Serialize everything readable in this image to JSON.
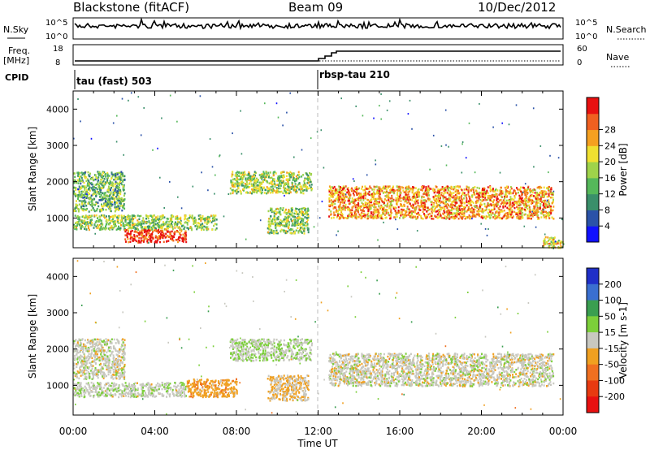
{
  "header": {
    "station": "Blackstone (fitACF)",
    "beam": "Beam 09",
    "date": "10/Dec/2012"
  },
  "top_panel": {
    "nsky_label": "N.Sky",
    "nsky_ticks": [
      "10^5",
      "10^0"
    ],
    "nsearch_label": "N.Search",
    "nsearch_ticks": [
      "10^5",
      "10^0"
    ]
  },
  "freq_panel": {
    "freq_label": "Freq.",
    "freq_unit": "[MHz]",
    "freq_ticks": [
      "18",
      "8"
    ],
    "nave_label": "Nave",
    "nave_ticks": [
      "60",
      "0"
    ]
  },
  "cpid": {
    "label": "CPID",
    "modes": [
      "tau (fast) 503",
      "rbsp-tau 210"
    ]
  },
  "x_axis": {
    "label": "Time UT",
    "ticks": [
      "00:00",
      "04:00",
      "08:00",
      "12:00",
      "16:00",
      "20:00",
      "00:00"
    ]
  },
  "colors": {
    "power": [
      "#1010ff",
      "#2a52a8",
      "#3a8f6a",
      "#55b85a",
      "#9fd34a",
      "#f0e030",
      "#f5a020",
      "#f06020",
      "#e81010"
    ],
    "velocity": [
      "#1f2fc8",
      "#3a6fd0",
      "#3a9e50",
      "#7ccf3a",
      "#c8c8c0",
      "#f0a020",
      "#f07020",
      "#e83a10",
      "#e81010"
    ]
  },
  "chart_data": [
    {
      "type": "heatmap",
      "title": "Power",
      "ylabel": "Slant Range [km]",
      "xlabel": "Time UT",
      "xlim": [
        "00:00",
        "24:00"
      ],
      "ylim": [
        180,
        4500
      ],
      "yticks": [
        "1000",
        "2000",
        "3000",
        "4000"
      ],
      "colorbar": {
        "label": "Power [dB]",
        "ticks": [
          "4",
          "8",
          "12",
          "16",
          "20",
          "24",
          "28"
        ],
        "range": [
          0,
          30
        ]
      },
      "echo_regions": [
        {
          "x": [
            "00:00",
            "02:30"
          ],
          "y": [
            1200,
            2300
          ],
          "value": 12
        },
        {
          "x": [
            "00:00",
            "07:00"
          ],
          "y": [
            700,
            1100
          ],
          "value": 14
        },
        {
          "x": [
            "02:30",
            "05:30"
          ],
          "y": [
            350,
            700
          ],
          "value": 27
        },
        {
          "x": [
            "07:40",
            "11:40"
          ],
          "y": [
            1700,
            2300
          ],
          "value": 15
        },
        {
          "x": [
            "09:30",
            "11:30"
          ],
          "y": [
            600,
            1300
          ],
          "value": 14
        },
        {
          "x": [
            "12:30",
            "23:30"
          ],
          "y": [
            1000,
            1900
          ],
          "value": 22
        },
        {
          "x": [
            "23:00",
            "24:00"
          ],
          "y": [
            200,
            500
          ],
          "value": 18
        }
      ]
    },
    {
      "type": "heatmap",
      "title": "Velocity",
      "ylabel": "Slant Range [km]",
      "xlabel": "Time UT",
      "xlim": [
        "00:00",
        "24:00"
      ],
      "ylim": [
        180,
        4500
      ],
      "yticks": [
        "1000",
        "2000",
        "3000",
        "4000"
      ],
      "colorbar": {
        "label": "Velocity [m s-1]",
        "ticks": [
          "200",
          "100",
          "50",
          "15",
          "-15",
          "-50",
          "-100",
          "-200"
        ],
        "range": [
          -250,
          250
        ]
      },
      "echo_regions": [
        {
          "x": [
            "00:00",
            "02:30"
          ],
          "y": [
            1200,
            2300
          ],
          "value": 0
        },
        {
          "x": [
            "00:00",
            "05:30"
          ],
          "y": [
            700,
            1100
          ],
          "value": 10
        },
        {
          "x": [
            "05:30",
            "08:00"
          ],
          "y": [
            700,
            1200
          ],
          "value": -60
        },
        {
          "x": [
            "07:40",
            "11:40"
          ],
          "y": [
            1700,
            2300
          ],
          "value": 20
        },
        {
          "x": [
            "09:30",
            "11:30"
          ],
          "y": [
            600,
            1300
          ],
          "value": -30
        },
        {
          "x": [
            "12:30",
            "23:30"
          ],
          "y": [
            1000,
            1900
          ],
          "value": 0
        }
      ]
    }
  ]
}
